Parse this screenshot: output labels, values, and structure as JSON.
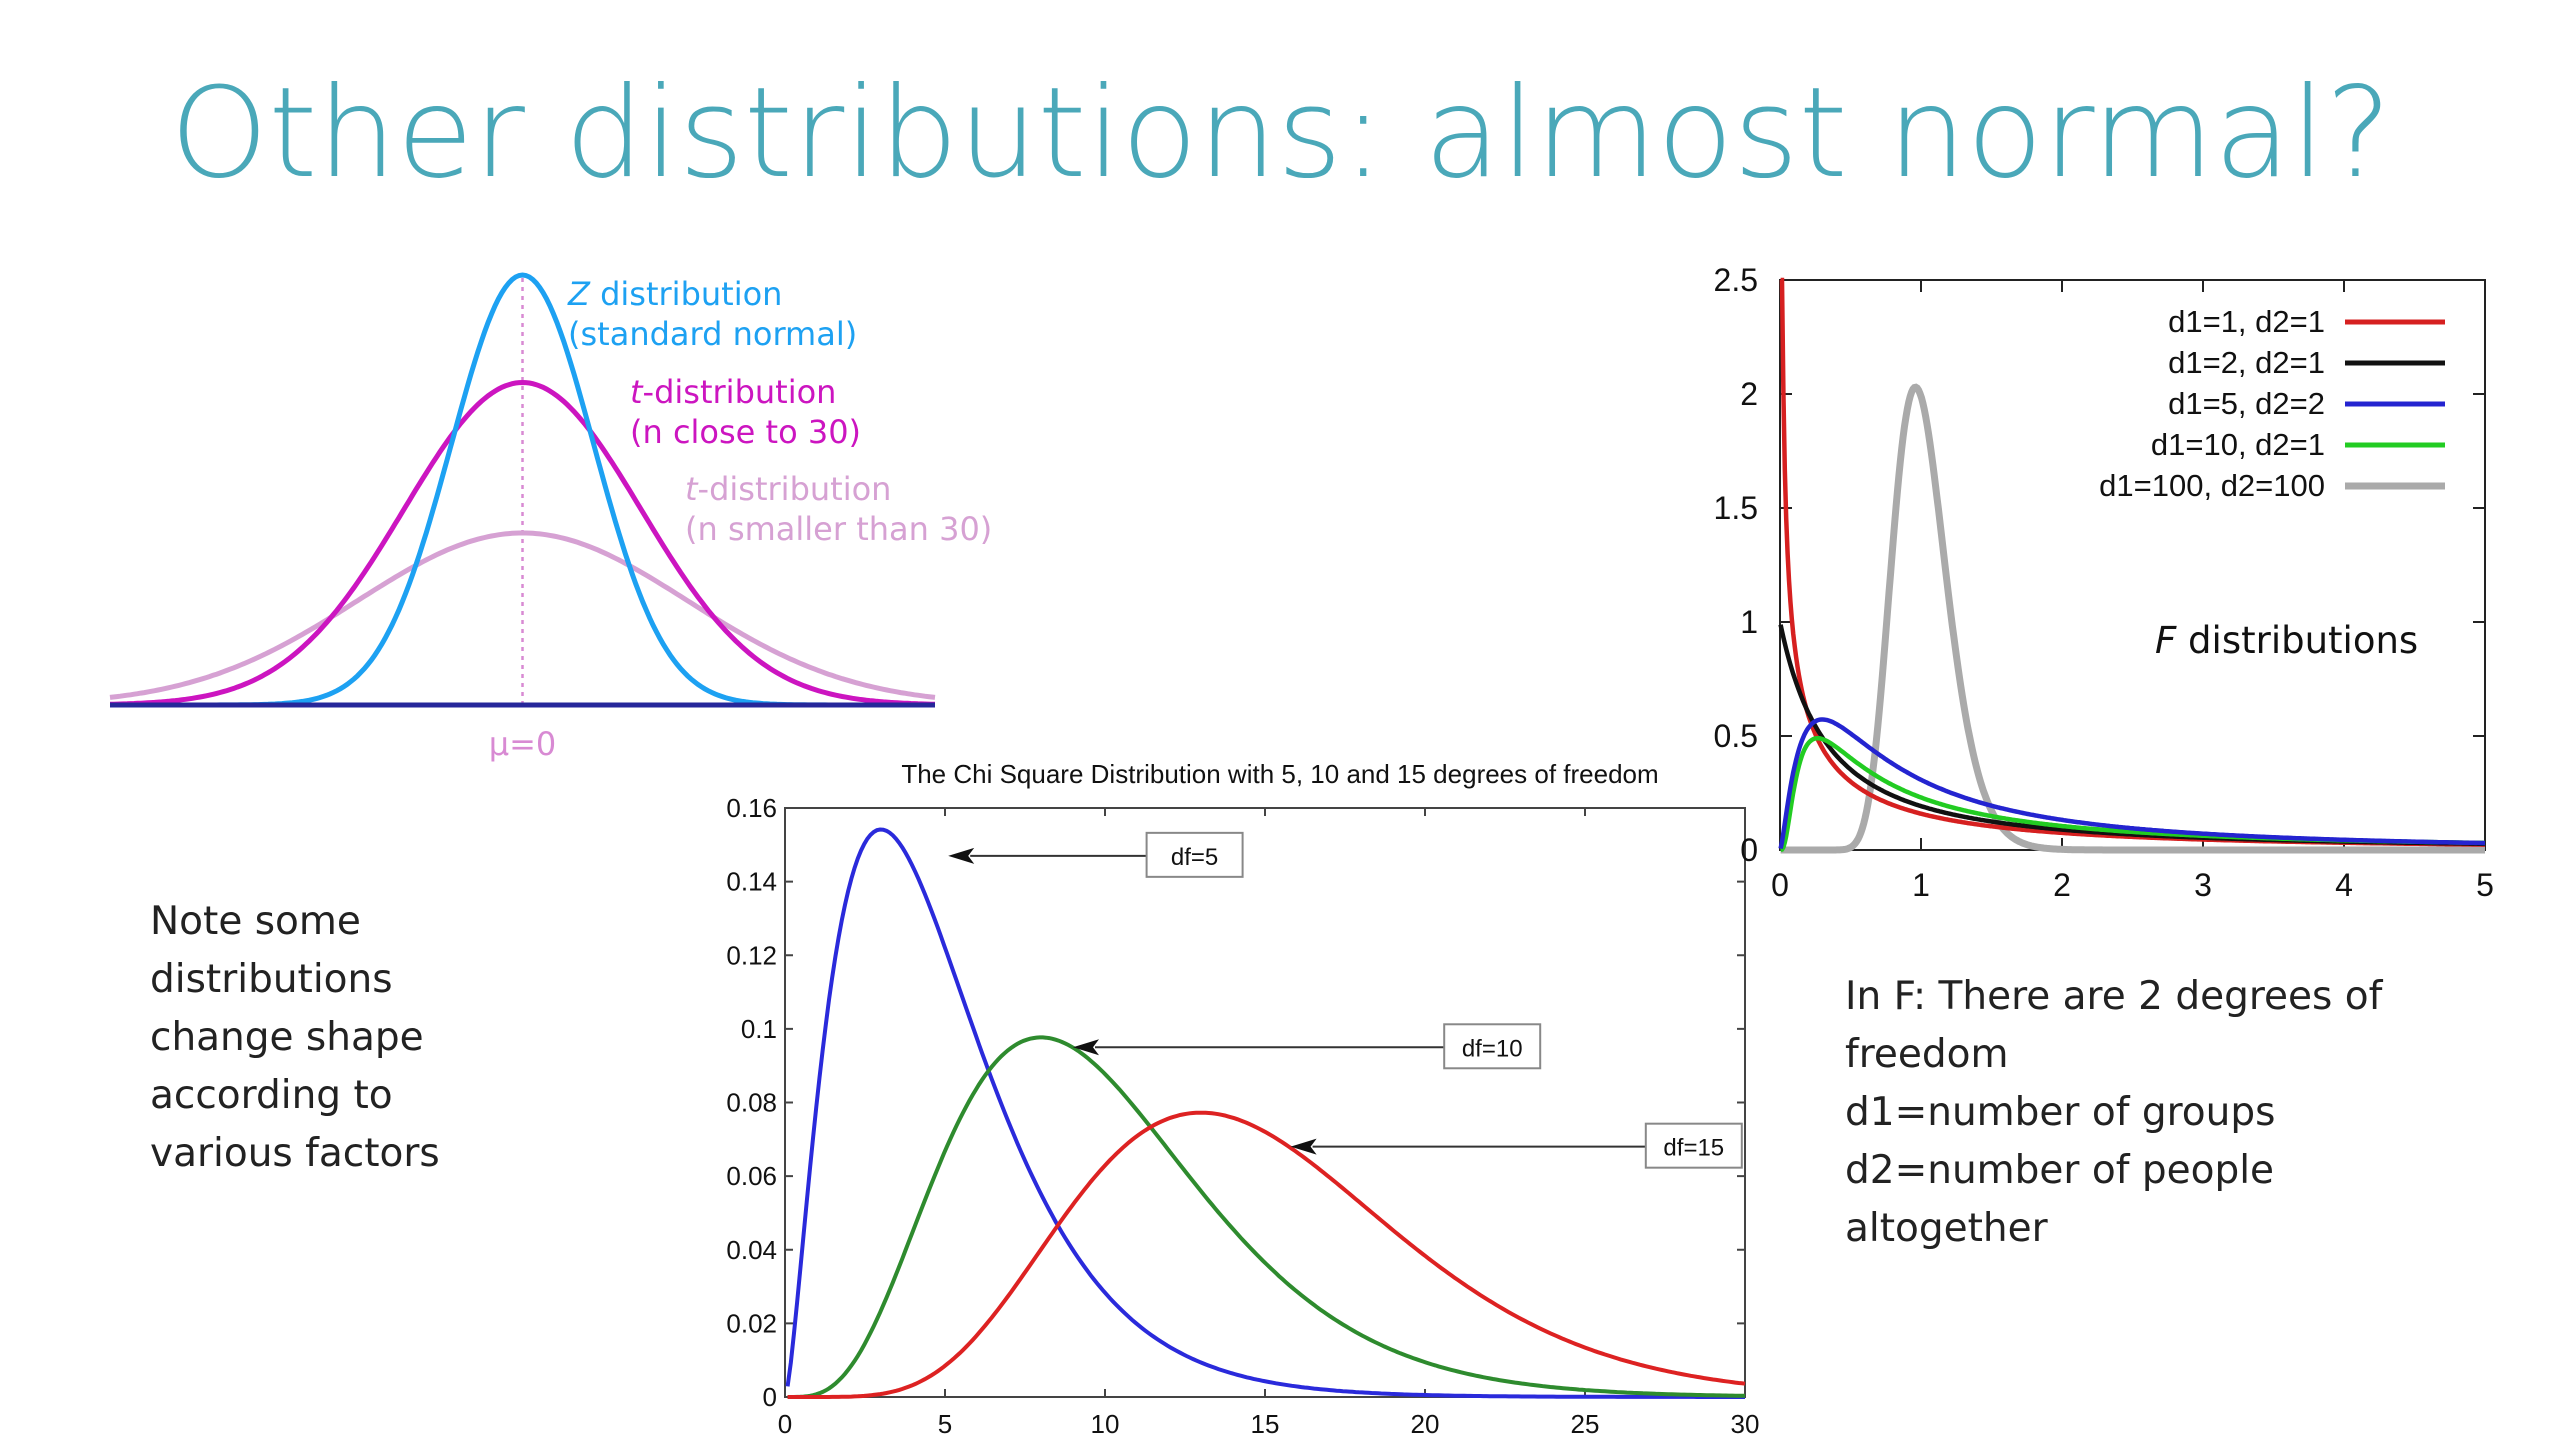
{
  "slide": {
    "title": "Other distributions: almost normal?",
    "note_left": [
      "Note some",
      "distributions",
      "change shape",
      "according to",
      "various factors"
    ],
    "note_right": [
      "In F: There are 2 degrees of",
      "freedom",
      "d1=number of groups",
      "d2=number of people",
      "altogether"
    ]
  },
  "chart_data": [
    {
      "type": "line",
      "title": "",
      "x_label": "μ=0",
      "x_range": [
        -4,
        4
      ],
      "series": [
        {
          "name": "Z distribution",
          "name_sub": "(standard normal)",
          "kind": "normal",
          "sigma": 0.69,
          "peak": 0.4,
          "color": "#1da1f2"
        },
        {
          "name": "t-distribution",
          "name_sub": "(n close to 30)",
          "kind": "normal",
          "sigma": 1.15,
          "peak": 0.3,
          "color": "#cc15c0"
        },
        {
          "name": "t-distribution",
          "name_sub": "(n smaller than 30)",
          "kind": "normal",
          "sigma": 1.6,
          "peak": 0.16,
          "color": "#d6a1d3"
        }
      ],
      "baseline_color": "#26279a",
      "mean_line_color": "#d88ad3"
    },
    {
      "type": "line",
      "title": "The Chi Square Distribution with 5, 10 and 15 degrees of freedom",
      "xlim": [
        0,
        30
      ],
      "ylim": [
        0,
        0.16
      ],
      "x_ticks": [
        "0",
        "5",
        "10",
        "15",
        "20",
        "25",
        "30"
      ],
      "y_ticks": [
        "0",
        "0.02",
        "0.04",
        "0.06",
        "0.08",
        "0.1",
        "0.12",
        "0.14",
        "0.16"
      ],
      "series": [
        {
          "name": "df=5",
          "df": 5,
          "color": "#2a2adb",
          "label_at": [
            5.1,
            0.147
          ],
          "label_box_x": 12.8
        },
        {
          "name": "df=10",
          "df": 10,
          "color": "#2e8b2e",
          "label_at": [
            9.0,
            0.095
          ],
          "label_box_x": 22.1
        },
        {
          "name": "df=15",
          "df": 15,
          "color": "#dd2222",
          "label_at": [
            15.8,
            0.068
          ],
          "label_box_x": 28.4
        }
      ]
    },
    {
      "type": "line",
      "title": "",
      "annotation": "F distributions",
      "xlim": [
        0,
        5
      ],
      "ylim": [
        0,
        2.5
      ],
      "x_ticks": [
        "0",
        "1",
        "2",
        "3",
        "4",
        "5"
      ],
      "y_ticks": [
        "0",
        "0.5",
        "1",
        "1.5",
        "2",
        "2.5"
      ],
      "legend_position": "top-right",
      "series": [
        {
          "name": "d1=1, d2=1",
          "d1": 1,
          "d2": 1,
          "color": "#d62020"
        },
        {
          "name": "d1=2, d2=1",
          "d1": 2,
          "d2": 1,
          "color": "#111111"
        },
        {
          "name": "d1=5, d2=2",
          "d1": 5,
          "d2": 2,
          "color": "#2424d0"
        },
        {
          "name": "d1=10, d2=1",
          "d1": 10,
          "d2": 1,
          "color": "#22cc22"
        },
        {
          "name": "d1=100, d2=100",
          "d1": 100,
          "d2": 100,
          "color": "#aaaaaa"
        }
      ]
    }
  ]
}
